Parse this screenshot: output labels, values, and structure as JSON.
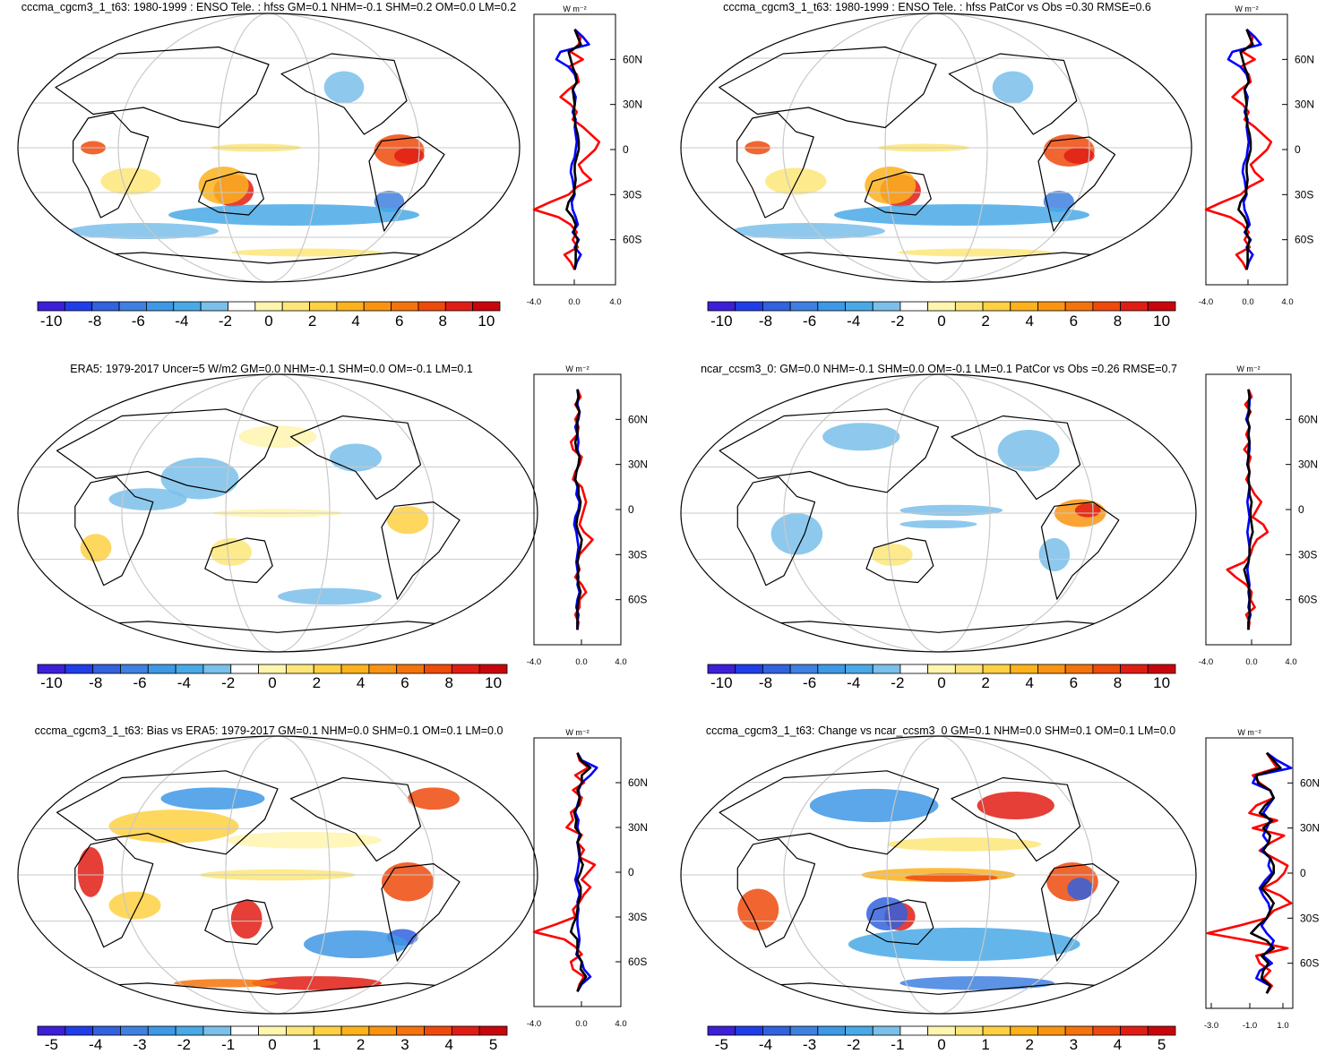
{
  "colors": {
    "colorbar": [
      "#3c1fd6",
      "#1f3ee8",
      "#3262dd",
      "#3f80e0",
      "#3e98e5",
      "#49a9e6",
      "#7ac0ea",
      "#ffffff",
      "#fef5ae",
      "#fde679",
      "#fed042",
      "#fbb21d",
      "#f99412",
      "#f4730c",
      "#ee4a0c",
      "#e01d14",
      "#c8050c"
    ],
    "profile_land": "#ff0000",
    "profile_ocean": "#0000ff",
    "profile_all": "#000000",
    "grid": "#c8c8c8"
  },
  "panels": [
    {
      "title": "cccma_cgcm3_1_t63: 1980-1999 : ENSO Tele. : hfss GM=0.1 NHM=-0.1 SHM=0.2 OM=0.0 LM=0.2",
      "cb_labels": [
        "-10",
        "-8",
        "-6",
        "-4",
        "-2",
        "0",
        "2",
        "4",
        "6",
        "8",
        "10"
      ],
      "profile": {
        "unit": "W m⁻²",
        "lat_ticks": [
          "60N",
          "30N",
          "0",
          "30S",
          "60S"
        ],
        "x_ticks": [
          "-4.0",
          "0.0",
          "4.0"
        ]
      }
    },
    {
      "title": "cccma_cgcm3_1_t63: 1980-1999 : ENSO Tele. : hfss PatCor vs Obs =0.30 RMSE=0.6",
      "cb_labels": [
        "-10",
        "-8",
        "-6",
        "-4",
        "-2",
        "0",
        "2",
        "4",
        "6",
        "8",
        "10"
      ],
      "profile": {
        "unit": "W m⁻²",
        "lat_ticks": [
          "60N",
          "30N",
          "0",
          "30S",
          "60S"
        ],
        "x_ticks": [
          "-4.0",
          "0.0",
          "4.0"
        ]
      }
    },
    {
      "title": "ERA5: 1979-2017 Uncer=5 W/m2 GM=0.0 NHM=-0.1 SHM=0.0 OM=-0.1 LM=0.1",
      "cb_labels": [
        "-10",
        "-8",
        "-6",
        "-4",
        "-2",
        "0",
        "2",
        "4",
        "6",
        "8",
        "10"
      ],
      "profile": {
        "unit": "W m⁻²",
        "lat_ticks": [
          "60N",
          "30N",
          "0",
          "30S",
          "60S"
        ],
        "x_ticks": [
          "-4.0",
          "0.0",
          "4.0"
        ]
      }
    },
    {
      "title": "ncar_ccsm3_0: GM=0.0 NHM=-0.1 SHM=0.0 OM=-0.1 LM=0.1 PatCor vs Obs =0.26 RMSE=0.7",
      "cb_labels": [
        "-10",
        "-8",
        "-6",
        "-4",
        "-2",
        "0",
        "2",
        "4",
        "6",
        "8",
        "10"
      ],
      "profile": {
        "unit": "W m⁻²",
        "lat_ticks": [
          "60N",
          "30N",
          "0",
          "30S",
          "60S"
        ],
        "x_ticks": [
          "-4.0",
          "0.0",
          "4.0"
        ]
      }
    },
    {
      "title": "cccma_cgcm3_1_t63: Bias vs ERA5: 1979-2017 GM=0.1 NHM=0.0 SHM=0.1 OM=0.1 LM=0.0",
      "cb_labels": [
        "-5",
        "-4",
        "-3",
        "-2",
        "-1",
        "0",
        "1",
        "2",
        "3",
        "4",
        "5"
      ],
      "profile": {
        "unit": "W m⁻²",
        "lat_ticks": [
          "60N",
          "30N",
          "0",
          "30S",
          "60S"
        ],
        "x_ticks": [
          "-4.0",
          "0.0",
          "4.0"
        ]
      }
    },
    {
      "title": "cccma_cgcm3_1_t63: Change vs ncar_ccsm3_0 GM=0.1 NHM=0.0 SHM=0.1 OM=0.1 LM=0.0",
      "cb_labels": [
        "-5",
        "-4",
        "-3",
        "-2",
        "-1",
        "0",
        "1",
        "2",
        "3",
        "4",
        "5"
      ],
      "profile": {
        "unit": "W m⁻²",
        "lat_ticks": [
          "60N",
          "30N",
          "0",
          "30S",
          "60S"
        ],
        "x_ticks": [
          "-3.0",
          "-1.0",
          "1.0"
        ]
      }
    }
  ]
}
